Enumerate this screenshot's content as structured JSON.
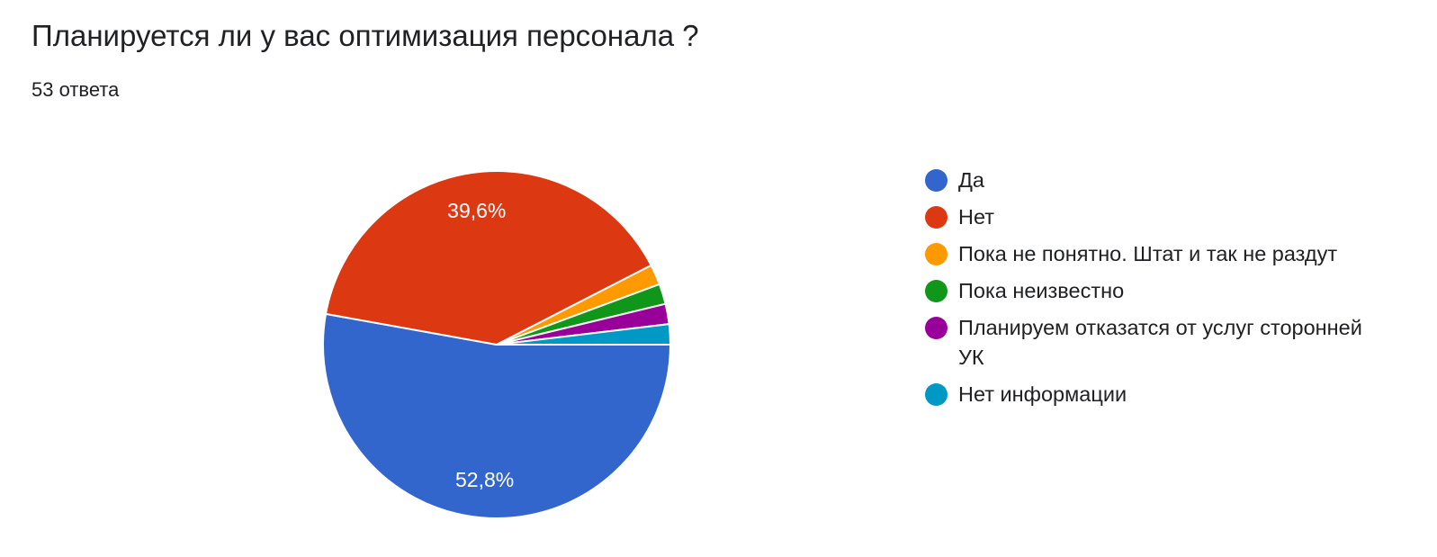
{
  "chart_data": {
    "type": "pie",
    "title": "Планируется ли у вас оптимизация персонала ?",
    "subtitle": "53 ответа",
    "legend_position": "right",
    "series": [
      {
        "label": "Да",
        "count": 28,
        "percent": 52.8,
        "percent_label": "52,8%",
        "color": "#3366cc"
      },
      {
        "label": "Нет",
        "count": 21,
        "percent": 39.6,
        "percent_label": "39,6%",
        "color": "#dc3912"
      },
      {
        "label": "Пока не понятно. Штат и так не раздут",
        "count": 1,
        "percent": 1.9,
        "percent_label": "",
        "color": "#ff9900"
      },
      {
        "label": "Пока неизвестно",
        "count": 1,
        "percent": 1.9,
        "percent_label": "",
        "color": "#109618"
      },
      {
        "label": "Планируем отказатся от услуг сторонней УК",
        "count": 1,
        "percent": 1.9,
        "percent_label": "",
        "color": "#990099"
      },
      {
        "label": "Нет информации",
        "count": 1,
        "percent": 1.9,
        "percent_label": "",
        "color": "#0099c6"
      }
    ]
  }
}
